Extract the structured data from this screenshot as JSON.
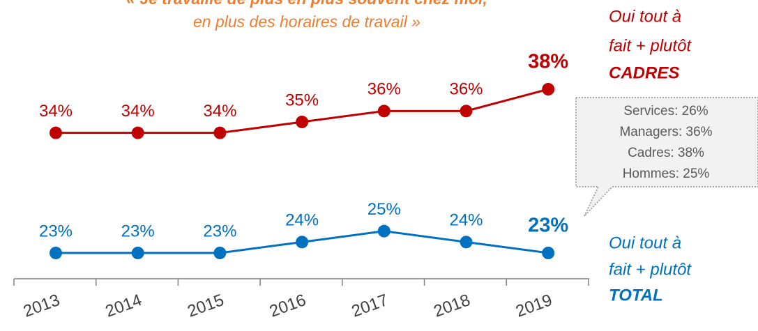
{
  "chart_data": {
    "type": "line",
    "title_lines": [
      "« Je travaille de plus en plus souvent chez moi,",
      "en plus des horaires de travail »"
    ],
    "categories": [
      "2013",
      "2014",
      "2015",
      "2016",
      "2017",
      "2018",
      "2019"
    ],
    "series": [
      {
        "name_lines": [
          "Oui tout à",
          "fait + plutôt",
          "CADRES"
        ],
        "color": "#c00000",
        "values": [
          34,
          34,
          34,
          35,
          36,
          36,
          38
        ],
        "value_labels": [
          "34%",
          "34%",
          "34%",
          "35%",
          "36%",
          "36%",
          "38%"
        ]
      },
      {
        "name_lines": [
          "Oui tout à",
          "fait + plutôt",
          "TOTAL"
        ],
        "color": "#0070c0",
        "values": [
          23,
          23,
          23,
          24,
          25,
          24,
          23
        ],
        "value_labels": [
          "23%",
          "23%",
          "23%",
          "24%",
          "25%",
          "24%",
          "23%"
        ]
      }
    ],
    "callout": [
      "Services: 26%",
      "Managers: 36%",
      "Cadres: 38%",
      "Hommes: 25%"
    ]
  }
}
